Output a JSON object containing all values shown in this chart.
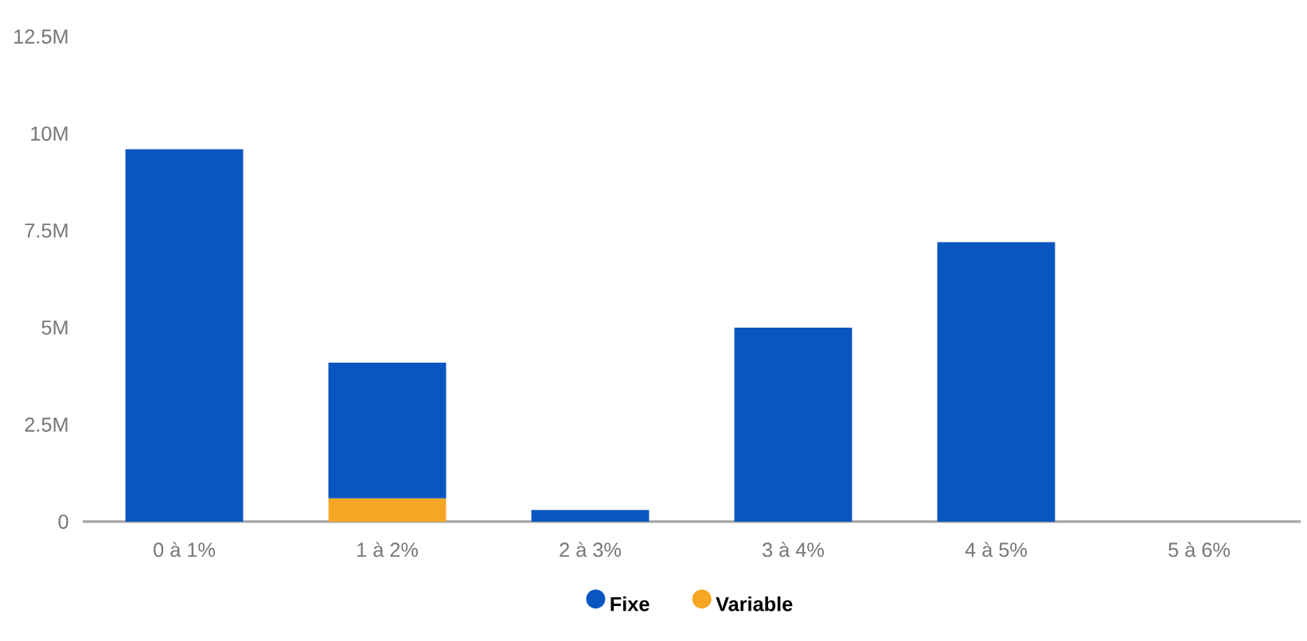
{
  "chart_data": {
    "type": "bar",
    "stacked": true,
    "categories": [
      "0 à 1%",
      "1 à 2%",
      "2 à 3%",
      "3 à 4%",
      "4 à 5%",
      "5 à 6%"
    ],
    "series": [
      {
        "name": "Variable",
        "color": "#f5a623",
        "values": [
          0,
          0.6,
          0,
          0,
          0,
          0
        ]
      },
      {
        "name": "Fixe",
        "color": "#0a56c0",
        "values": [
          9.6,
          3.5,
          0.3,
          5.0,
          7.2,
          0
        ]
      }
    ],
    "ylim": [
      0,
      12.5
    ],
    "yticks": [
      {
        "value": 0,
        "label": "0"
      },
      {
        "value": 2.5,
        "label": "2.5M"
      },
      {
        "value": 5,
        "label": "5M"
      },
      {
        "value": 7.5,
        "label": "7.5M"
      },
      {
        "value": 10,
        "label": "10M"
      },
      {
        "value": 12.5,
        "label": "12.5M"
      }
    ],
    "legend": "bottom"
  }
}
